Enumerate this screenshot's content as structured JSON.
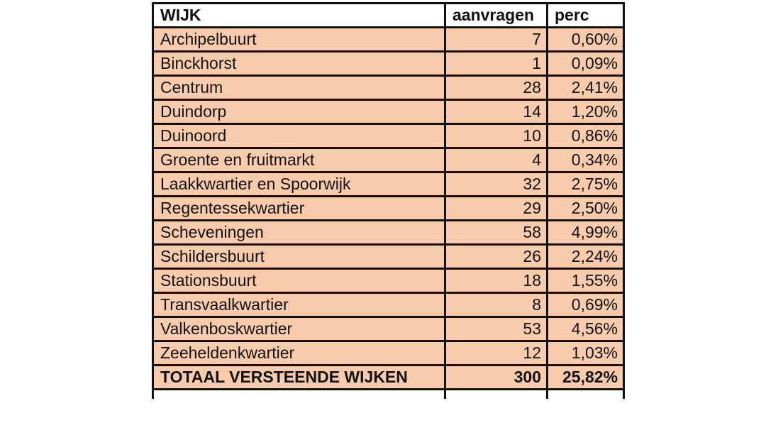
{
  "table": {
    "headers": [
      "WIJK",
      "aanvragen",
      "perc"
    ],
    "rows": [
      {
        "wijk": "Archipelbuurt",
        "aanvragen": "7",
        "perc": "0,60%"
      },
      {
        "wijk": "Binckhorst",
        "aanvragen": "1",
        "perc": "0,09%"
      },
      {
        "wijk": "Centrum",
        "aanvragen": "28",
        "perc": "2,41%"
      },
      {
        "wijk": "Duindorp",
        "aanvragen": "14",
        "perc": "1,20%"
      },
      {
        "wijk": "Duinoord",
        "aanvragen": "10",
        "perc": "0,86%"
      },
      {
        "wijk": "Groente en fruitmarkt",
        "aanvragen": "4",
        "perc": "0,34%"
      },
      {
        "wijk": "Laakkwartier en Spoorwijk",
        "aanvragen": "32",
        "perc": "2,75%"
      },
      {
        "wijk": "Regentessekwartier",
        "aanvragen": "29",
        "perc": "2,50%"
      },
      {
        "wijk": "Scheveningen",
        "aanvragen": "58",
        "perc": "4,99%"
      },
      {
        "wijk": "Schildersbuurt",
        "aanvragen": "26",
        "perc": "2,24%"
      },
      {
        "wijk": "Stationsbuurt",
        "aanvragen": "18",
        "perc": "1,55%"
      },
      {
        "wijk": "Transvaalkwartier",
        "aanvragen": "8",
        "perc": "0,69%"
      },
      {
        "wijk": "Valkenboskwartier",
        "aanvragen": "53",
        "perc": "4,56%"
      },
      {
        "wijk": "Zeeheldenkwartier",
        "aanvragen": "12",
        "perc": "1,03%"
      }
    ],
    "total": {
      "wijk": "TOTAAL VERSTEENDE WIJKEN",
      "aanvragen": "300",
      "perc": "25,82%"
    }
  },
  "colors": {
    "row_fill": "#f8cbad",
    "header_fill": "#ffffff",
    "border": "#111111"
  }
}
